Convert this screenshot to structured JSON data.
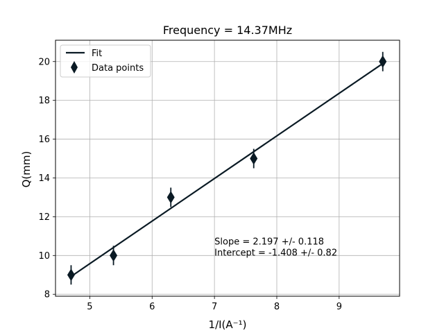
{
  "chart_data": {
    "type": "scatter",
    "title": "Frequency = 14.37MHz",
    "xlabel": "1/I(A⁻¹)",
    "ylabel": "Q(mm)",
    "xlim": [
      4.45,
      9.97
    ],
    "ylim": [
      7.9,
      21.1
    ],
    "xticks": [
      5,
      6,
      7,
      8,
      9
    ],
    "yticks": [
      8,
      10,
      12,
      14,
      16,
      18,
      20
    ],
    "grid": true,
    "legend_position": "top-left",
    "colors": {
      "marker": "#0a1a24",
      "fit": "#0a1a24",
      "grid": "#b0b0b0"
    },
    "series": [
      {
        "name": "Data points",
        "kind": "errorbar",
        "marker": "thin-diamond",
        "x": [
          4.7,
          5.38,
          6.3,
          7.63,
          9.7
        ],
        "y": [
          9.0,
          10.0,
          13.0,
          15.0,
          20.0
        ],
        "yerr": [
          0.5,
          0.5,
          0.5,
          0.5,
          0.5
        ]
      },
      {
        "name": "Fit",
        "kind": "line",
        "x": [
          4.7,
          9.7
        ],
        "y": [
          8.92,
          19.9
        ]
      }
    ],
    "annotation": {
      "x": 7.0,
      "y": 10.0,
      "lines": [
        "Slope = 2.197 +/- 0.118",
        "Intercept = -1.408 +/- 0.82"
      ]
    }
  }
}
